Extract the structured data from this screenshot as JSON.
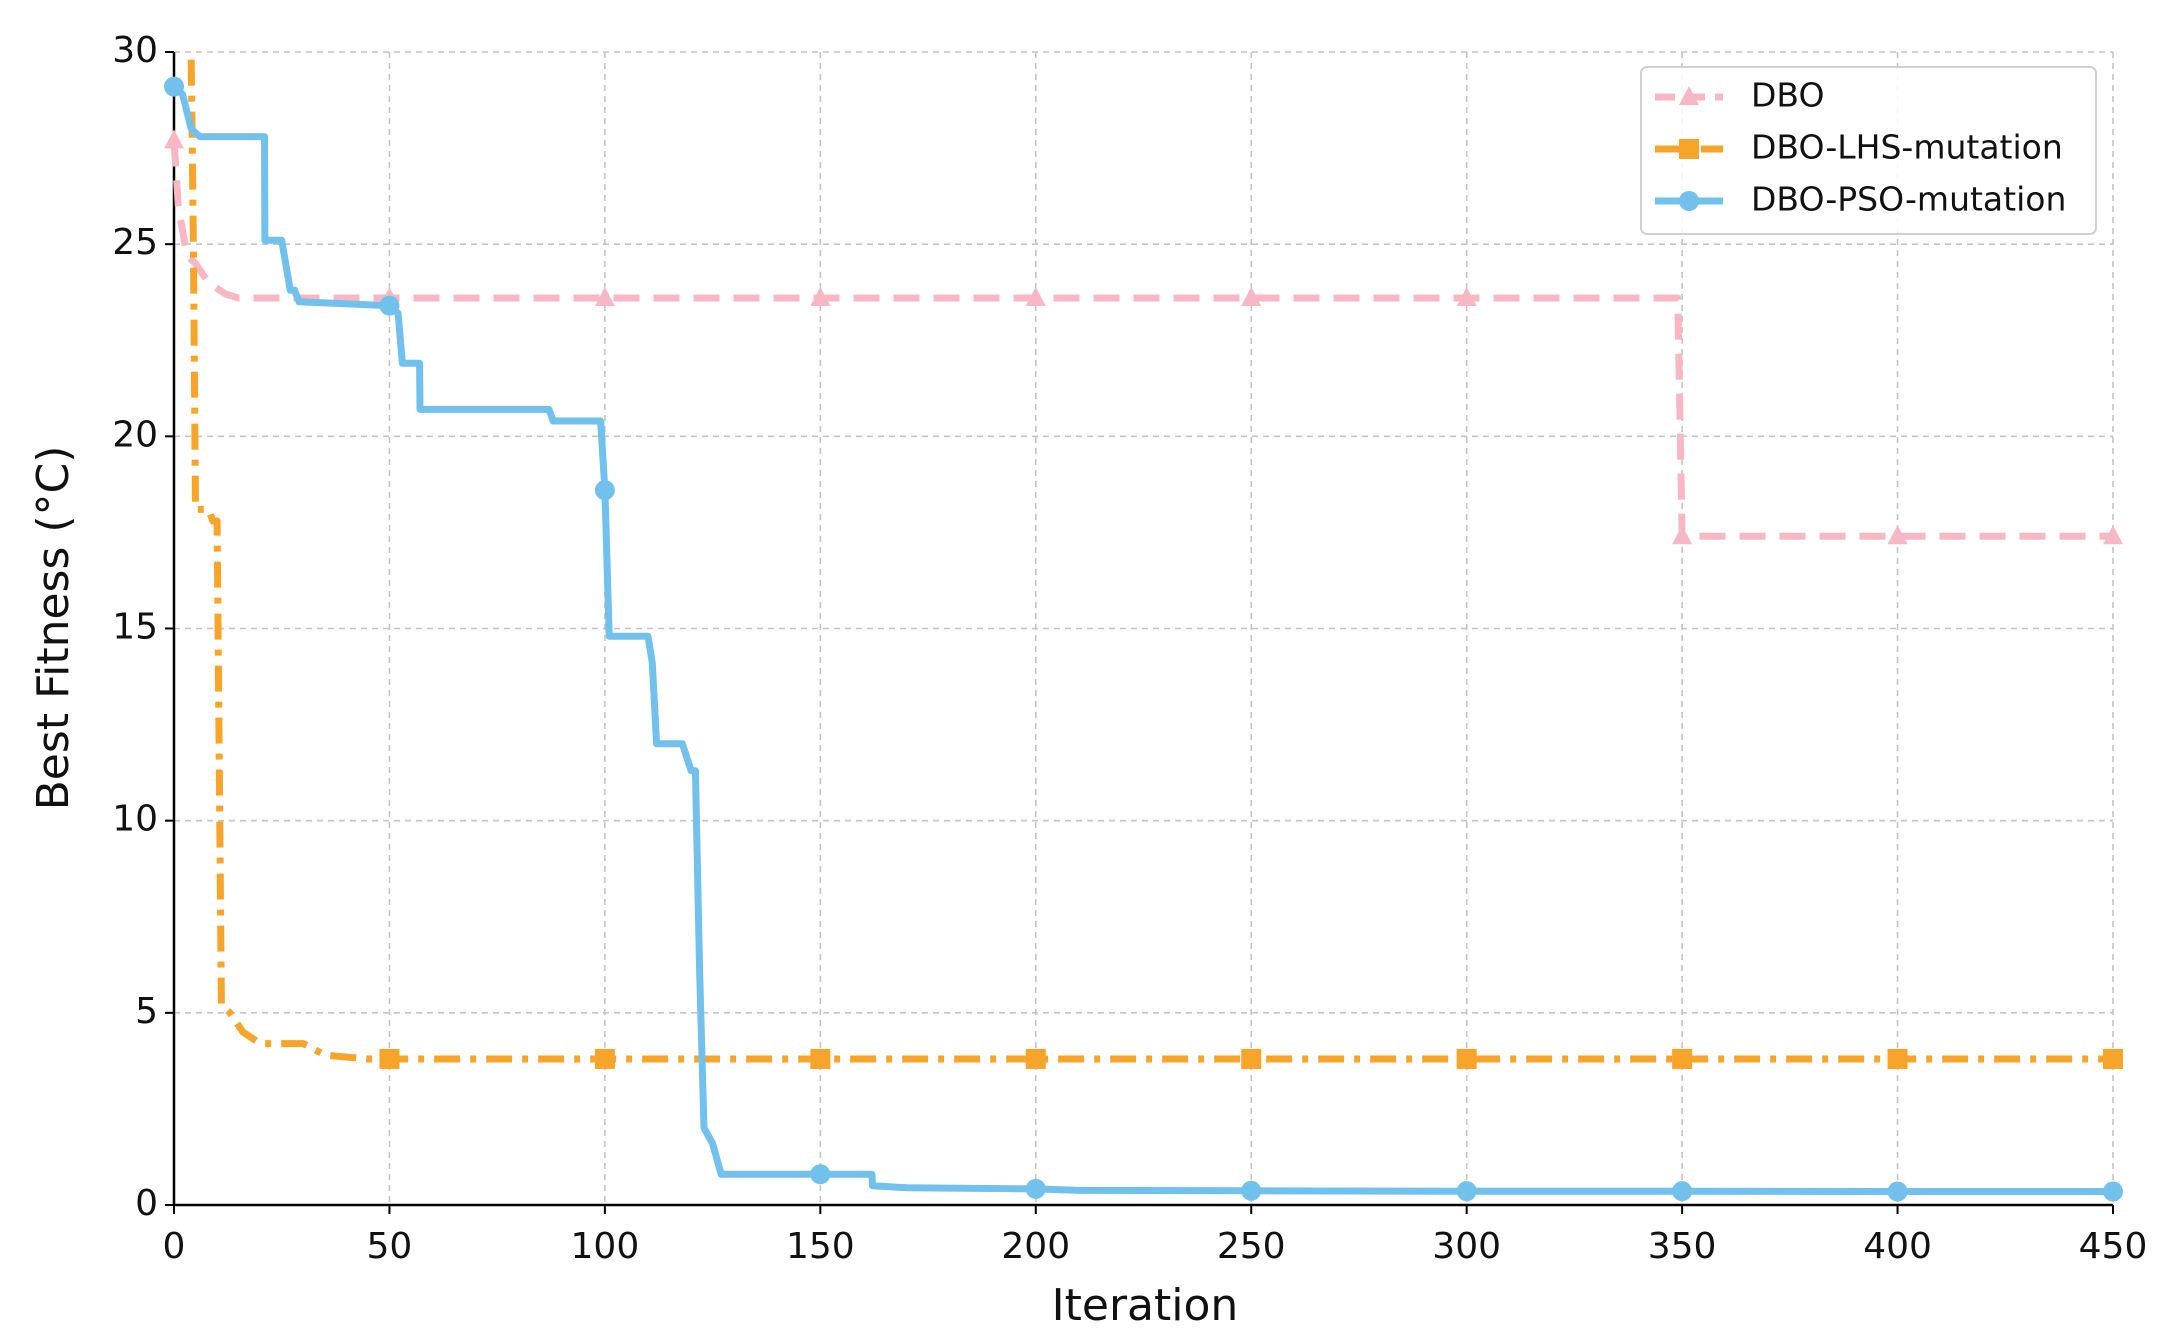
{
  "chart_data": {
    "type": "line",
    "xlabel": "Iteration",
    "ylabel": "Best Fitness     (°C)",
    "xlim": [
      0,
      450
    ],
    "ylim": [
      0,
      30
    ],
    "xticks": [
      0,
      50,
      100,
      150,
      200,
      250,
      300,
      350,
      400,
      450
    ],
    "yticks": [
      0,
      5,
      10,
      15,
      20,
      25,
      30
    ],
    "grid": true,
    "legend": "upper right",
    "marker_every": 50,
    "series": [
      {
        "name": "DBO",
        "color": "#f7b7c5",
        "dash": "dashed",
        "marker": "triangle",
        "x": [
          0,
          1,
          3,
          5,
          8,
          12,
          15,
          50,
          100,
          150,
          200,
          250,
          300,
          349,
          350,
          400,
          450
        ],
        "values": [
          27.7,
          26,
          24.7,
          24.5,
          24.0,
          23.7,
          23.6,
          23.6,
          23.6,
          23.6,
          23.6,
          23.6,
          23.6,
          23.6,
          17.4,
          17.4,
          17.4
        ]
      },
      {
        "name": "DBO-LHS-mutation",
        "color": "#f7a52a",
        "dash": "dashdot",
        "marker": "square",
        "x": [
          4,
          4.5,
          5,
          8,
          9,
          10,
          11,
          13,
          16,
          20,
          30,
          35,
          45,
          50,
          100,
          150,
          200,
          250,
          300,
          350,
          400,
          450
        ],
        "values": [
          29.8,
          25,
          18.1,
          18.1,
          17.8,
          17.8,
          5.2,
          5.0,
          4.5,
          4.2,
          4.2,
          3.9,
          3.8,
          3.8,
          3.8,
          3.8,
          3.8,
          3.8,
          3.8,
          3.8,
          3.8,
          3.8
        ]
      },
      {
        "name": "DBO-PSO-mutation",
        "color": "#72c0ec",
        "dash": "solid",
        "marker": "circle",
        "x": [
          0,
          2,
          4,
          6,
          21,
          21.1,
          25,
          27,
          28,
          29,
          50,
          52,
          53,
          57,
          57.1,
          87,
          88,
          99,
          100,
          101,
          110,
          111,
          112,
          118,
          120,
          121,
          122,
          123,
          125,
          127,
          150,
          162,
          162.1,
          170,
          200,
          210,
          250,
          300,
          350,
          400,
          450
        ],
        "values": [
          29.1,
          28.9,
          28.0,
          27.8,
          27.8,
          25.1,
          25.1,
          23.8,
          23.8,
          23.5,
          23.4,
          23.2,
          21.9,
          21.9,
          20.7,
          20.7,
          20.4,
          20.4,
          18.6,
          14.8,
          14.8,
          14.1,
          12.0,
          12.0,
          11.3,
          11.3,
          6.0,
          2.0,
          1.6,
          0.8,
          0.8,
          0.8,
          0.5,
          0.45,
          0.42,
          0.38,
          0.37,
          0.36,
          0.36,
          0.35,
          0.35
        ]
      }
    ]
  }
}
